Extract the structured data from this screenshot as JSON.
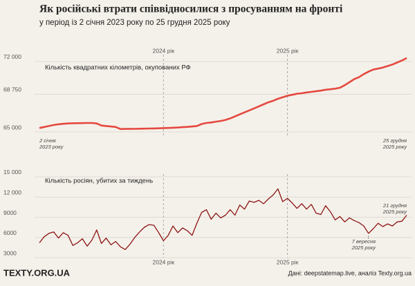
{
  "header": {
    "title": "Як російські втрати співвідносилися з просуванням на фронті",
    "subtitle": "у період із 2 січня 2023 року по 25 грудня 2025 року"
  },
  "chart_data": [
    {
      "type": "line",
      "label": "Кількість квадратних кілометрів, окупованих РФ",
      "categories": [
        null,
        null,
        null,
        null,
        null,
        null,
        null,
        null,
        null,
        null,
        null,
        null,
        null,
        null,
        null,
        null,
        null,
        null,
        null,
        null,
        null,
        null,
        null,
        null,
        null,
        null,
        "2024 рік",
        null,
        null,
        null,
        null,
        null,
        null,
        null,
        null,
        null,
        null,
        null,
        null,
        null,
        null,
        null,
        null,
        null,
        null,
        null,
        null,
        null,
        null,
        null,
        null,
        null,
        "2025 рік",
        null,
        null,
        null,
        null,
        null,
        null,
        null,
        null,
        null,
        null,
        null,
        null,
        null,
        null,
        null,
        null,
        null,
        null,
        null,
        null,
        null,
        null,
        null,
        null,
        null
      ],
      "series": [
        {
          "color": "#e5483f",
          "values": [
            65050,
            65150,
            65250,
            65350,
            65420,
            65470,
            65500,
            65520,
            65530,
            65540,
            65550,
            65550,
            65500,
            65300,
            65250,
            65200,
            65150,
            64950,
            64960,
            64960,
            64970,
            64980,
            64990,
            65000,
            65010,
            65020,
            65040,
            65060,
            65080,
            65100,
            65130,
            65160,
            65200,
            65250,
            65450,
            65550,
            65600,
            65680,
            65750,
            65850,
            66000,
            66200,
            66400,
            66600,
            66800,
            67000,
            67200,
            67400,
            67600,
            67750,
            67950,
            68100,
            68250,
            68350,
            68450,
            68500,
            68580,
            68640,
            68700,
            68760,
            68850,
            68900,
            68960,
            69050,
            69300,
            69600,
            69900,
            70100,
            70400,
            70650,
            70850,
            70950,
            71050,
            71200,
            71350,
            71550,
            71750,
            72000
          ]
        }
      ],
      "ylim": [
        64700,
        72300
      ],
      "yticks": [
        {
          "value": 65000,
          "label": "65 000"
        },
        {
          "value": 68750,
          "label": "68 750"
        },
        {
          "value": 72000,
          "label": "72 000"
        }
      ],
      "grid": true,
      "notes": [
        {
          "lines": [
            "2 січня",
            "2023 року"
          ]
        },
        {
          "lines": [
            "25 грудня",
            "2025 року"
          ]
        }
      ]
    },
    {
      "type": "line",
      "label": "Кількість росіян, убитих за тиждень",
      "categories": [
        null,
        null,
        null,
        null,
        null,
        null,
        null,
        null,
        null,
        null,
        null,
        null,
        null,
        null,
        null,
        null,
        null,
        null,
        null,
        null,
        null,
        null,
        null,
        null,
        null,
        null,
        "2024 рік",
        null,
        null,
        null,
        null,
        null,
        null,
        null,
        null,
        null,
        null,
        null,
        null,
        null,
        null,
        null,
        null,
        null,
        null,
        null,
        null,
        null,
        null,
        null,
        null,
        null,
        "2025 рік",
        null,
        null,
        null,
        null,
        null,
        null,
        null,
        null,
        null,
        null,
        null,
        null,
        null,
        null,
        null,
        null,
        null,
        null,
        null,
        null,
        null,
        null,
        null,
        null,
        null
      ],
      "series": [
        {
          "color": "#8b1414",
          "values": [
            4700,
            5600,
            6100,
            6300,
            5400,
            6200,
            5800,
            4300,
            4700,
            5300,
            4200,
            5100,
            6600,
            4600,
            5400,
            4400,
            4900,
            4100,
            3700,
            4500,
            5500,
            6300,
            7000,
            7400,
            7300,
            6200,
            5000,
            5800,
            7200,
            6200,
            6900,
            6500,
            5800,
            7600,
            9200,
            9600,
            8200,
            9100,
            8400,
            8800,
            9600,
            8800,
            10300,
            9700,
            10900,
            10700,
            11000,
            10500,
            11200,
            11800,
            12700,
            10800,
            11300,
            10600,
            9800,
            10500,
            9700,
            10400,
            9100,
            8900,
            10200,
            9300,
            8100,
            8600,
            7800,
            8400,
            8000,
            7700,
            7200,
            6100,
            6800,
            7600,
            7100,
            7500,
            7200,
            7800,
            7900,
            8800
          ]
        }
      ],
      "ylim": [
        2500,
        15500
      ],
      "yticks": [
        3000,
        6000,
        9000,
        {
          "value": 12000,
          "label": "12 000"
        },
        {
          "value": 15000,
          "label": "15 000"
        }
      ],
      "grid": true,
      "notes": [
        {
          "lines": [
            "7 вересня",
            "2025 року"
          ]
        },
        {
          "lines": [
            "21 грудня",
            "2025 року"
          ]
        }
      ]
    }
  ],
  "footer": {
    "logo": "TEXTY.ORG.UA",
    "source": "Дані: deepstatemap.live, аналіз Texty.org.ua"
  }
}
